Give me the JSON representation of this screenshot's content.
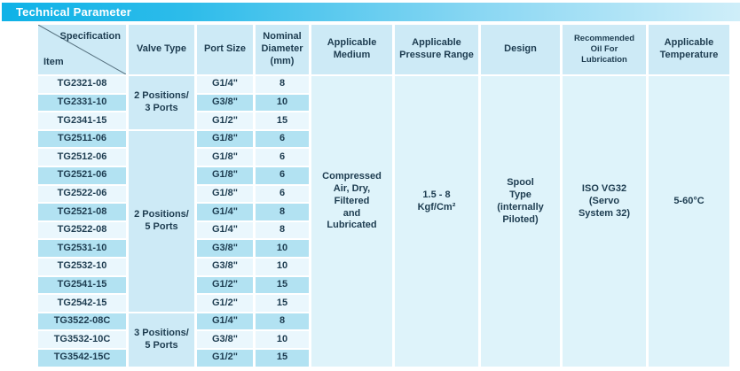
{
  "title_bar": {
    "label": "Technical Parameter"
  },
  "table": {
    "corner": {
      "top_label": "Specification",
      "bottom_label": "Item"
    },
    "column_headers": {
      "valve_type": "Valve Type",
      "port_size": "Port Size",
      "nominal_diameter": "Nominal\nDiameter\n(mm)",
      "applicable_medium": "Applicable\nMedium",
      "applicable_pressure_range": "Applicable\nPressure Range",
      "design": "Design",
      "recommended_oil": "Recommended\nOil For\nLubrication",
      "applicable_temperature": "Applicable\nTemperature"
    },
    "valve_type_groups": [
      {
        "label": "2 Positions/\n3 Ports",
        "row_span": 3
      },
      {
        "label": "2 Positions/\n5 Ports",
        "row_span": 10
      },
      {
        "label": "3 Positions/\n5 Ports",
        "row_span": 3
      }
    ],
    "rows": [
      {
        "item": "TG2321-08",
        "port_size": "G1/4\"",
        "nominal_diameter": "8"
      },
      {
        "item": "TG2331-10",
        "port_size": "G3/8\"",
        "nominal_diameter": "10"
      },
      {
        "item": "TG2341-15",
        "port_size": "G1/2\"",
        "nominal_diameter": "15"
      },
      {
        "item": "TG2511-06",
        "port_size": "G1/8\"",
        "nominal_diameter": "6"
      },
      {
        "item": "TG2512-06",
        "port_size": "G1/8\"",
        "nominal_diameter": "6"
      },
      {
        "item": "TG2521-06",
        "port_size": "G1/8\"",
        "nominal_diameter": "6"
      },
      {
        "item": "TG2522-06",
        "port_size": "G1/8\"",
        "nominal_diameter": "6"
      },
      {
        "item": "TG2521-08",
        "port_size": "G1/4\"",
        "nominal_diameter": "8"
      },
      {
        "item": "TG2522-08",
        "port_size": "G1/4\"",
        "nominal_diameter": "8"
      },
      {
        "item": "TG2531-10",
        "port_size": "G3/8\"",
        "nominal_diameter": "10"
      },
      {
        "item": "TG2532-10",
        "port_size": "G3/8\"",
        "nominal_diameter": "10"
      },
      {
        "item": "TG2541-15",
        "port_size": "G1/2\"",
        "nominal_diameter": "15"
      },
      {
        "item": "TG2542-15",
        "port_size": "G1/2\"",
        "nominal_diameter": "15"
      },
      {
        "item": "TG3522-08C",
        "port_size": "G1/4\"",
        "nominal_diameter": "8"
      },
      {
        "item": "TG3532-10C",
        "port_size": "G3/8\"",
        "nominal_diameter": "10"
      },
      {
        "item": "TG3542-15C",
        "port_size": "G1/2\"",
        "nominal_diameter": "15"
      }
    ],
    "shared_values": {
      "applicable_medium": "Compressed\nAir, Dry,\nFiltered\nand\nLubricated",
      "applicable_pressure_range": "1.5 - 8\nKgf/Cm²",
      "design": "Spool\nType\n(internally\nPiloted)",
      "recommended_oil": "ISO VG32\n(Servo\nSystem 32)",
      "applicable_temperature": "5-60°C"
    }
  },
  "colors": {
    "title_gradient_start": "#0fb2e7",
    "title_gradient_end": "#cfeef9",
    "header_bg": "#cdeaf6",
    "row_pale": "#eaf7fd",
    "row_medium": "#b2e2f2",
    "merged_cell_bg": "#def3fa",
    "text": "#1d3c50",
    "title_text": "#ffffff"
  }
}
